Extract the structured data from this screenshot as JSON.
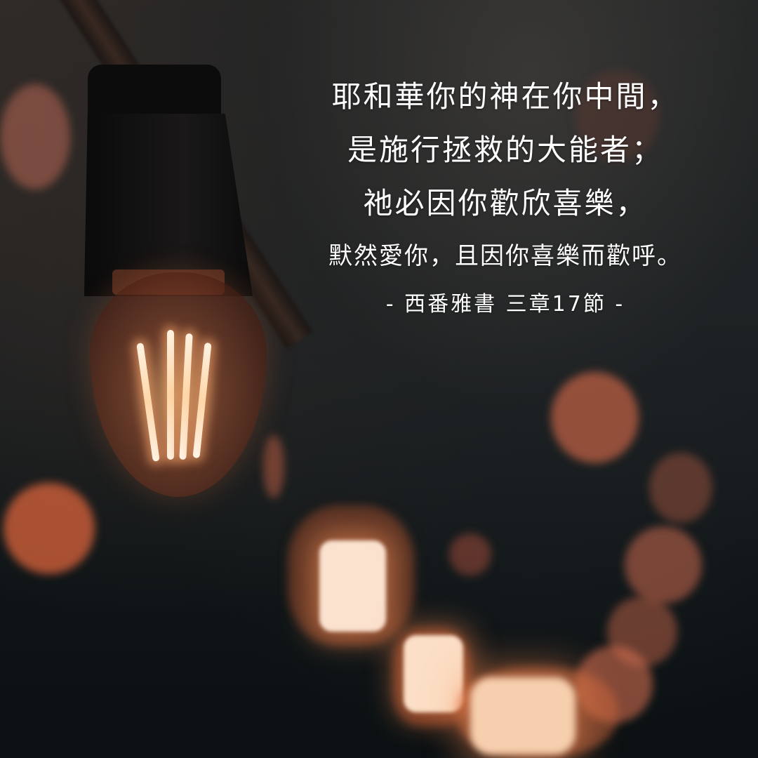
{
  "verse": {
    "lines": [
      "耶和華你的神在你中間，",
      "是施行拯救的大能者；",
      "祂必因你歡欣喜樂，",
      "默然愛你，且因你喜樂而歡呼。"
    ],
    "reference": "- 西番雅書 三章17節 -"
  },
  "colors": {
    "text": "#ffffff",
    "glow": "#e07a4a",
    "background": "#0e1416"
  }
}
